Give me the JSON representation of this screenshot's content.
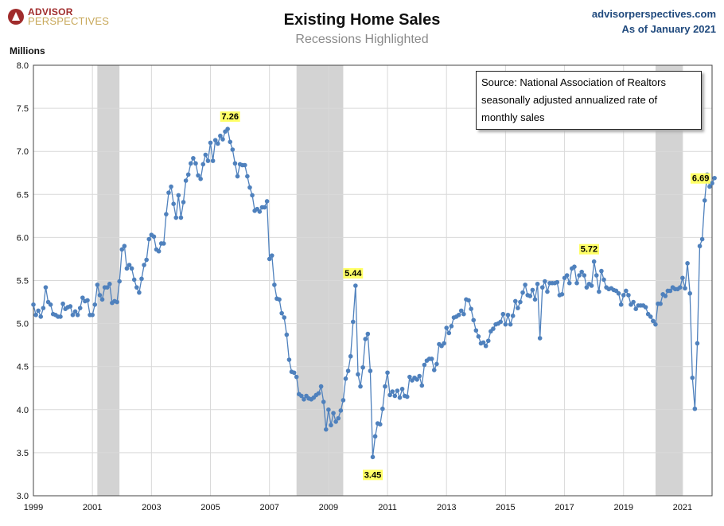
{
  "header": {
    "logo_top": "ADVISOR",
    "logo_bottom": "PERSPECTIVES",
    "site": "advisorperspectives.com",
    "as_of": "As of January 2021"
  },
  "source_note": [
    "Source: National Association of Realtors",
    "seasonally adjusted annualized rate of",
    "monthly  sales"
  ],
  "colors": {
    "line": "#4f81bd",
    "recession": "#d3d3d3",
    "grid": "#d9d9d9",
    "callout_bg": "#ffff66"
  },
  "chart_data": {
    "type": "line",
    "title": "Existing Home Sales",
    "subtitle": "Recessions Highlighted",
    "ylabel": "Millions",
    "ylim": [
      3.0,
      8.0
    ],
    "yticks": [
      "3.0",
      "3.5",
      "4.0",
      "4.5",
      "5.0",
      "5.5",
      "6.0",
      "6.5",
      "7.0",
      "7.5",
      "8.0"
    ],
    "xlim": [
      "1999-01",
      "2022-01"
    ],
    "xticks": [
      "1999",
      "2001",
      "2003",
      "2005",
      "2007",
      "2009",
      "2011",
      "2013",
      "2015",
      "2017",
      "2019",
      "2021"
    ],
    "grid": true,
    "recessions": [
      [
        "2001-03",
        "2001-11"
      ],
      [
        "2007-12",
        "2009-06"
      ],
      [
        "2020-02",
        "2020-12"
      ]
    ],
    "annotations": [
      {
        "label": "7.26",
        "date": "2005-09",
        "value": 7.26
      },
      {
        "label": "5.44",
        "date": "2009-11",
        "value": 5.44
      },
      {
        "label": "3.45",
        "date": "2010-07",
        "value": 3.45
      },
      {
        "label": "5.72",
        "date": "2017-11",
        "value": 5.72
      },
      {
        "label": "6.69",
        "date": "2021-01",
        "value": 6.69
      }
    ],
    "start": "1999-01",
    "values": [
      5.22,
      5.1,
      5.15,
      5.08,
      5.18,
      5.42,
      5.25,
      5.22,
      5.11,
      5.1,
      5.08,
      5.08,
      5.23,
      5.17,
      5.19,
      5.2,
      5.1,
      5.14,
      5.1,
      5.18,
      5.3,
      5.26,
      5.27,
      5.1,
      5.1,
      5.22,
      5.45,
      5.33,
      5.28,
      5.42,
      5.42,
      5.46,
      5.24,
      5.26,
      5.25,
      5.49,
      5.86,
      5.9,
      5.64,
      5.68,
      5.64,
      5.51,
      5.42,
      5.36,
      5.52,
      5.68,
      5.74,
      5.98,
      6.03,
      6.01,
      5.86,
      5.84,
      5.93,
      5.93,
      6.27,
      6.52,
      6.59,
      6.39,
      6.23,
      6.49,
      6.23,
      6.41,
      6.66,
      6.73,
      6.86,
      6.92,
      6.86,
      6.72,
      6.68,
      6.85,
      6.96,
      6.89,
      7.1,
      6.89,
      7.13,
      7.09,
      7.18,
      7.14,
      7.23,
      7.26,
      7.11,
      7.02,
      6.86,
      6.71,
      6.85,
      6.84,
      6.84,
      6.71,
      6.58,
      6.49,
      6.31,
      6.33,
      6.3,
      6.35,
      6.35,
      6.42,
      5.75,
      5.79,
      5.45,
      5.29,
      5.28,
      5.12,
      5.07,
      4.87,
      4.58,
      4.44,
      4.43,
      4.38,
      4.18,
      4.16,
      4.12,
      4.16,
      4.13,
      4.12,
      4.14,
      4.17,
      4.19,
      4.27,
      4.09,
      3.77,
      4.0,
      3.82,
      3.96,
      3.86,
      3.9,
      3.99,
      4.11,
      4.36,
      4.45,
      4.62,
      5.02,
      5.44,
      4.41,
      4.27,
      4.49,
      4.82,
      4.88,
      4.45,
      3.45,
      3.69,
      3.84,
      3.83,
      4.01,
      4.27,
      4.43,
      4.17,
      4.21,
      4.16,
      4.22,
      4.14,
      4.24,
      4.16,
      4.15,
      4.38,
      4.34,
      4.37,
      4.35,
      4.39,
      4.28,
      4.52,
      4.57,
      4.59,
      4.59,
      4.46,
      4.53,
      4.76,
      4.74,
      4.77,
      4.95,
      4.89,
      4.97,
      5.07,
      5.08,
      5.1,
      5.15,
      5.11,
      5.28,
      5.27,
      5.17,
      5.04,
      4.92,
      4.85,
      4.77,
      4.78,
      4.74,
      4.8,
      4.91,
      4.94,
      4.99,
      5.0,
      5.02,
      5.11,
      4.99,
      5.1,
      4.99,
      5.09,
      5.26,
      5.18,
      5.25,
      5.36,
      5.45,
      5.33,
      5.32,
      5.39,
      5.28,
      5.46,
      4.83,
      5.42,
      5.49,
      5.37,
      5.47,
      5.47,
      5.47,
      5.48,
      5.33,
      5.34,
      5.53,
      5.56,
      5.47,
      5.64,
      5.66,
      5.47,
      5.56,
      5.6,
      5.56,
      5.42,
      5.46,
      5.44,
      5.72,
      5.56,
      5.37,
      5.61,
      5.51,
      5.42,
      5.4,
      5.41,
      5.39,
      5.38,
      5.35,
      5.22,
      5.33,
      5.38,
      5.33,
      5.22,
      5.25,
      5.17,
      5.21,
      5.21,
      5.21,
      5.19,
      5.11,
      5.08,
      5.03,
      4.99,
      5.23,
      5.23,
      5.34,
      5.32,
      5.38,
      5.38,
      5.42,
      5.4,
      5.4,
      5.42,
      5.53,
      5.41,
      5.7,
      5.35,
      4.37,
      4.01,
      4.77,
      5.9,
      5.98,
      6.43,
      6.73,
      6.59,
      6.63,
      6.69
    ]
  }
}
